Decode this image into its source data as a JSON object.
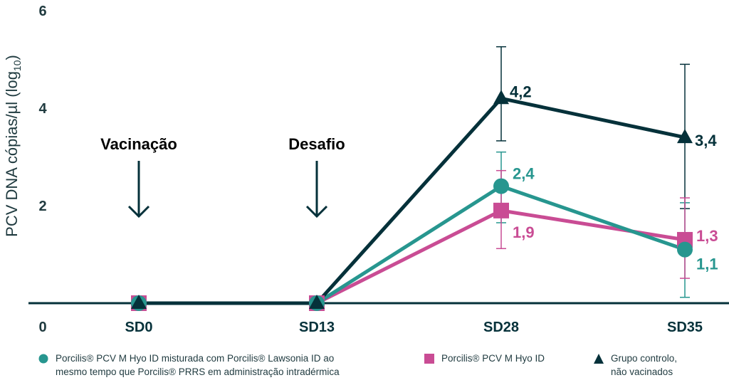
{
  "chart_data": {
    "type": "line",
    "ylabel": "PCV DNA cópias/µl (log",
    "ylabel_sub": "10",
    "ylabel_end": ")",
    "ylim": [
      0,
      6
    ],
    "yticks": [
      0,
      2,
      4,
      6
    ],
    "ytick_labels": [
      "0",
      "2",
      "4",
      "6"
    ],
    "categories": [
      "SD0",
      "SD13",
      "SD28",
      "SD35"
    ],
    "grid": false,
    "legend_placement": "bottom",
    "annotations": [
      {
        "text": "Vacinação",
        "category": "SD0"
      },
      {
        "text": "Desafio",
        "category": "SD13"
      }
    ],
    "series": [
      {
        "name": "Porcilis® PCV M Hyo ID misturada com Porcilis® Lawsonia ID ao mesmo tempo que Porcilis® PRRS em administração intradérmica",
        "legend_lines": [
          "Porcilis® PCV M Hyo ID misturada com Porcilis® Lawsonia ID ao",
          "mesmo tempo que Porcilis® PRRS em administração intradérmica"
        ],
        "marker": "circle",
        "color": "#27968f",
        "values": [
          0,
          0,
          2.4,
          1.1
        ],
        "error_low": [
          null,
          null,
          1.65,
          0.12
        ],
        "error_high": [
          null,
          null,
          3.1,
          2.06
        ],
        "labels": [
          "",
          "",
          "2,4",
          "1,1"
        ]
      },
      {
        "name": "Porcilis® PCV M Hyo ID",
        "legend_lines": [
          "Porcilis® PCV M Hyo ID"
        ],
        "marker": "square",
        "color": "#c94c94",
        "values": [
          0,
          0,
          1.9,
          1.3
        ],
        "error_low": [
          null,
          null,
          1.12,
          0.51
        ],
        "error_high": [
          null,
          null,
          2.72,
          2.16
        ],
        "labels": [
          "",
          "",
          "1,9",
          "1,3"
        ]
      },
      {
        "name": "Grupo controlo, não vacinados",
        "legend_lines": [
          "Grupo controlo,",
          "não vacinados"
        ],
        "marker": "triangle",
        "color": "#05313a",
        "values": [
          0,
          0,
          4.2,
          3.4
        ],
        "error_low": [
          null,
          null,
          3.33,
          1.94
        ],
        "error_high": [
          null,
          null,
          5.26,
          4.9
        ],
        "labels": [
          "",
          "",
          "4,2",
          "3,4"
        ]
      }
    ]
  }
}
